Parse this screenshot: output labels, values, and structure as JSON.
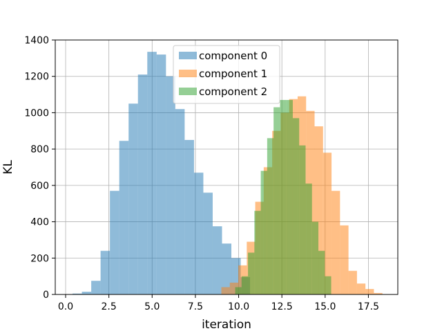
{
  "chart_data": {
    "type": "histogram",
    "title": "",
    "xlabel": "iteration",
    "ylabel": "KL",
    "xlim": [
      -0.6,
      19.2
    ],
    "ylim": [
      0,
      1400
    ],
    "grid": true,
    "legend_position": "top-center",
    "x_ticks": [
      0.0,
      2.5,
      5.0,
      7.5,
      10.0,
      12.5,
      15.0,
      17.5
    ],
    "x_tick_labels": [
      "0.0",
      "2.5",
      "5.0",
      "7.5",
      "10.0",
      "12.5",
      "15.0",
      "17.5"
    ],
    "y_ticks": [
      0,
      200,
      400,
      600,
      800,
      1000,
      1200,
      1400
    ],
    "y_tick_labels": [
      "0",
      "200",
      "400",
      "600",
      "800",
      "1000",
      "1200",
      "1400"
    ],
    "series": [
      {
        "name": "component 0",
        "color": "#1f77b4",
        "opacity": 0.5,
        "bin_edges": [
          0.4,
          0.94,
          1.48,
          2.02,
          2.56,
          3.1,
          3.64,
          4.18,
          4.72,
          5.26,
          5.8,
          6.34,
          6.88,
          7.42,
          7.96,
          8.5,
          9.04,
          9.58,
          10.12,
          10.66
        ],
        "counts": [
          5,
          15,
          75,
          240,
          570,
          845,
          1050,
          1210,
          1335,
          1320,
          1200,
          1020,
          850,
          670,
          560,
          375,
          280,
          200,
          95
        ]
      },
      {
        "name": "component 1",
        "color": "#ff7f0e",
        "opacity": 0.5,
        "bin_edges": [
          9.0,
          9.49,
          9.98,
          10.47,
          10.96,
          11.45,
          11.94,
          12.43,
          12.92,
          13.41,
          13.9,
          14.39,
          14.88,
          15.37,
          15.86,
          16.35,
          16.84,
          17.33,
          17.82,
          18.31
        ],
        "counts": [
          40,
          65,
          160,
          290,
          510,
          700,
          900,
          1000,
          1075,
          1090,
          1010,
          925,
          780,
          570,
          380,
          130,
          60,
          30,
          8
        ]
      },
      {
        "name": "component 2",
        "color": "#2ca02c",
        "opacity": 0.5,
        "bin_edges": [
          9.8,
          10.17,
          10.54,
          10.91,
          11.28,
          11.65,
          12.02,
          12.39,
          12.76,
          13.13,
          13.5,
          13.87,
          14.24,
          14.61,
          14.98,
          15.35
        ],
        "counts": [
          40,
          100,
          230,
          460,
          680,
          860,
          1030,
          1070,
          1070,
          970,
          820,
          610,
          400,
          240,
          100
        ]
      }
    ]
  }
}
